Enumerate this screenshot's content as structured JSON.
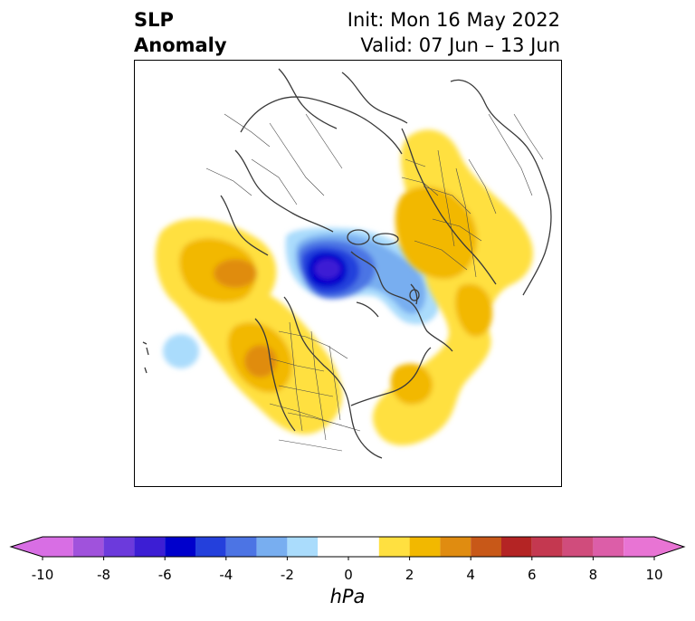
{
  "title": {
    "left_line1": "SLP",
    "left_line2": "Anomaly",
    "right_line1": "Init: Mon 16 May 2022",
    "right_line2": "Valid: 07 Jun – 13 Jun"
  },
  "colorbar": {
    "unit": "hPa",
    "ticks": [
      "-10",
      "-8",
      "-6",
      "-4",
      "-2",
      "0",
      "2",
      "4",
      "6",
      "8",
      "10"
    ],
    "levels": [
      -10,
      -9,
      -8,
      -7,
      -6,
      -5,
      -4,
      -3,
      -2,
      -1,
      1,
      2,
      3,
      4,
      5,
      6,
      7,
      8,
      9,
      10
    ],
    "colors": [
      "#d86ee4",
      "#a052dc",
      "#6c3adc",
      "#3c1ed4",
      "#0000cc",
      "#2440dc",
      "#4c74e4",
      "#78aef0",
      "#aadcfc",
      "#ffffff",
      "#ffe040",
      "#f2b800",
      "#e08c10",
      "#c85818",
      "#b42424",
      "#c43850",
      "#d04c7c",
      "#dc5ea8",
      "#e874d4"
    ],
    "extend_low_color": "#d86ee4",
    "extend_high_color": "#e874d4"
  }
}
